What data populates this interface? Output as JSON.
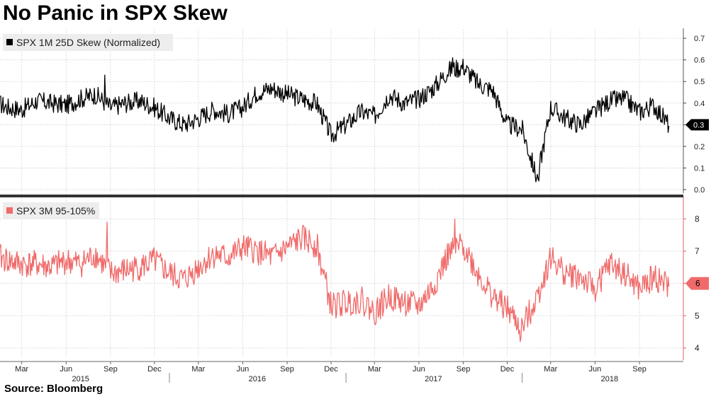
{
  "title": "No Panic in SPX Skew",
  "source": "Source: Bloomberg",
  "colors": {
    "skew_1m": "#000000",
    "skew_3m": "#f06a6a",
    "grid": "#c8c8c8",
    "divider": "#333333"
  },
  "chart_data": [
    {
      "type": "line",
      "panel": "top",
      "grid": true,
      "legend_position": "top-left",
      "ylim": [
        0,
        0.72
      ],
      "ytick_labels": [
        "0.0",
        "0.1",
        "0.2",
        "0.3",
        "0.4",
        "0.5",
        "0.6",
        "0.7"
      ],
      "last_value_label": "0.3",
      "last_value": 0.3,
      "series": [
        {
          "name": "SPX 1M 25D Skew (Normalized)",
          "color": "#000000",
          "x": [
            "2015-01-01",
            "2015-02-01",
            "2015-03-01",
            "2015-04-01",
            "2015-05-01",
            "2015-06-01",
            "2015-07-01",
            "2015-08-01",
            "2015-09-01",
            "2015-10-01",
            "2015-11-01",
            "2015-12-01",
            "2016-01-01",
            "2016-02-01",
            "2016-03-01",
            "2016-04-01",
            "2016-05-01",
            "2016-06-01",
            "2016-07-01",
            "2016-08-01",
            "2016-09-01",
            "2016-10-01",
            "2016-11-01",
            "2016-12-01",
            "2017-01-01",
            "2017-02-01",
            "2017-03-01",
            "2017-04-01",
            "2017-05-01",
            "2017-06-01",
            "2017-07-01",
            "2017-08-01",
            "2017-09-01",
            "2017-10-01",
            "2017-11-01",
            "2017-12-01",
            "2018-01-01",
            "2018-02-01",
            "2018-03-01",
            "2018-04-01",
            "2018-05-01",
            "2018-06-01",
            "2018-07-01",
            "2018-08-01",
            "2018-09-01",
            "2018-10-01",
            "2018-11-01"
          ],
          "values": [
            0.41,
            0.38,
            0.37,
            0.41,
            0.4,
            0.39,
            0.42,
            0.44,
            0.38,
            0.4,
            0.41,
            0.38,
            0.33,
            0.3,
            0.33,
            0.37,
            0.35,
            0.38,
            0.45,
            0.47,
            0.44,
            0.42,
            0.4,
            0.25,
            0.3,
            0.36,
            0.34,
            0.44,
            0.4,
            0.42,
            0.47,
            0.55,
            0.57,
            0.49,
            0.46,
            0.3,
            0.28,
            0.05,
            0.38,
            0.33,
            0.3,
            0.36,
            0.41,
            0.42,
            0.36,
            0.39,
            0.3
          ]
        }
      ]
    },
    {
      "type": "line",
      "panel": "bottom",
      "grid": true,
      "legend_position": "top-left",
      "ylim": [
        3.8,
        8.6
      ],
      "ytick_labels": [
        "4",
        "5",
        "6",
        "7",
        "8"
      ],
      "last_value_label": "6",
      "last_value": 6,
      "series": [
        {
          "name": "SPX 3M 95-105%",
          "color": "#f06a6a",
          "x": [
            "2015-01-01",
            "2015-02-01",
            "2015-03-01",
            "2015-04-01",
            "2015-05-01",
            "2015-06-01",
            "2015-07-01",
            "2015-08-01",
            "2015-09-01",
            "2015-10-01",
            "2015-11-01",
            "2015-12-01",
            "2016-01-01",
            "2016-02-01",
            "2016-03-01",
            "2016-04-01",
            "2016-05-01",
            "2016-06-01",
            "2016-07-01",
            "2016-08-01",
            "2016-09-01",
            "2016-10-01",
            "2016-11-01",
            "2016-12-01",
            "2017-01-01",
            "2017-02-01",
            "2017-03-01",
            "2017-04-01",
            "2017-05-01",
            "2017-06-01",
            "2017-07-01",
            "2017-08-01",
            "2017-09-01",
            "2017-10-01",
            "2017-11-01",
            "2017-12-01",
            "2018-01-01",
            "2018-02-01",
            "2018-03-01",
            "2018-04-01",
            "2018-05-01",
            "2018-06-01",
            "2018-07-01",
            "2018-08-01",
            "2018-09-01",
            "2018-10-01",
            "2018-11-01"
          ],
          "values": [
            6.9,
            6.7,
            6.6,
            6.6,
            6.5,
            6.7,
            6.6,
            6.9,
            6.3,
            6.4,
            6.5,
            6.7,
            6.3,
            6.1,
            6.5,
            6.9,
            6.8,
            7.1,
            7.0,
            6.8,
            7.1,
            7.4,
            7.2,
            5.3,
            5.4,
            5.5,
            5.1,
            5.6,
            5.4,
            5.3,
            5.9,
            6.9,
            7.2,
            6.3,
            5.6,
            5.2,
            4.6,
            5.6,
            6.8,
            6.3,
            6.2,
            5.8,
            6.6,
            6.3,
            5.8,
            6.2,
            5.9
          ]
        }
      ]
    }
  ],
  "x_axis": {
    "month_labels": [
      "Mar",
      "Jun",
      "Sep",
      "Dec",
      "Mar",
      "Jun",
      "Sep",
      "Dec",
      "Mar",
      "Jun",
      "Sep",
      "Dec",
      "Mar",
      "Jun",
      "Sep"
    ],
    "month_dates": [
      "2015-03-01",
      "2015-06-01",
      "2015-09-01",
      "2015-12-01",
      "2016-03-01",
      "2016-06-01",
      "2016-09-01",
      "2016-12-01",
      "2017-03-01",
      "2017-06-01",
      "2017-09-01",
      "2017-12-01",
      "2018-03-01",
      "2018-06-01",
      "2018-09-01"
    ],
    "year_labels": [
      "2015",
      "2016",
      "2017",
      "2018"
    ],
    "year_dates": [
      "2015-07-01",
      "2016-07-01",
      "2017-07-01",
      "2018-07-01"
    ],
    "start": "2015-01-15",
    "end": "2018-12-01"
  }
}
